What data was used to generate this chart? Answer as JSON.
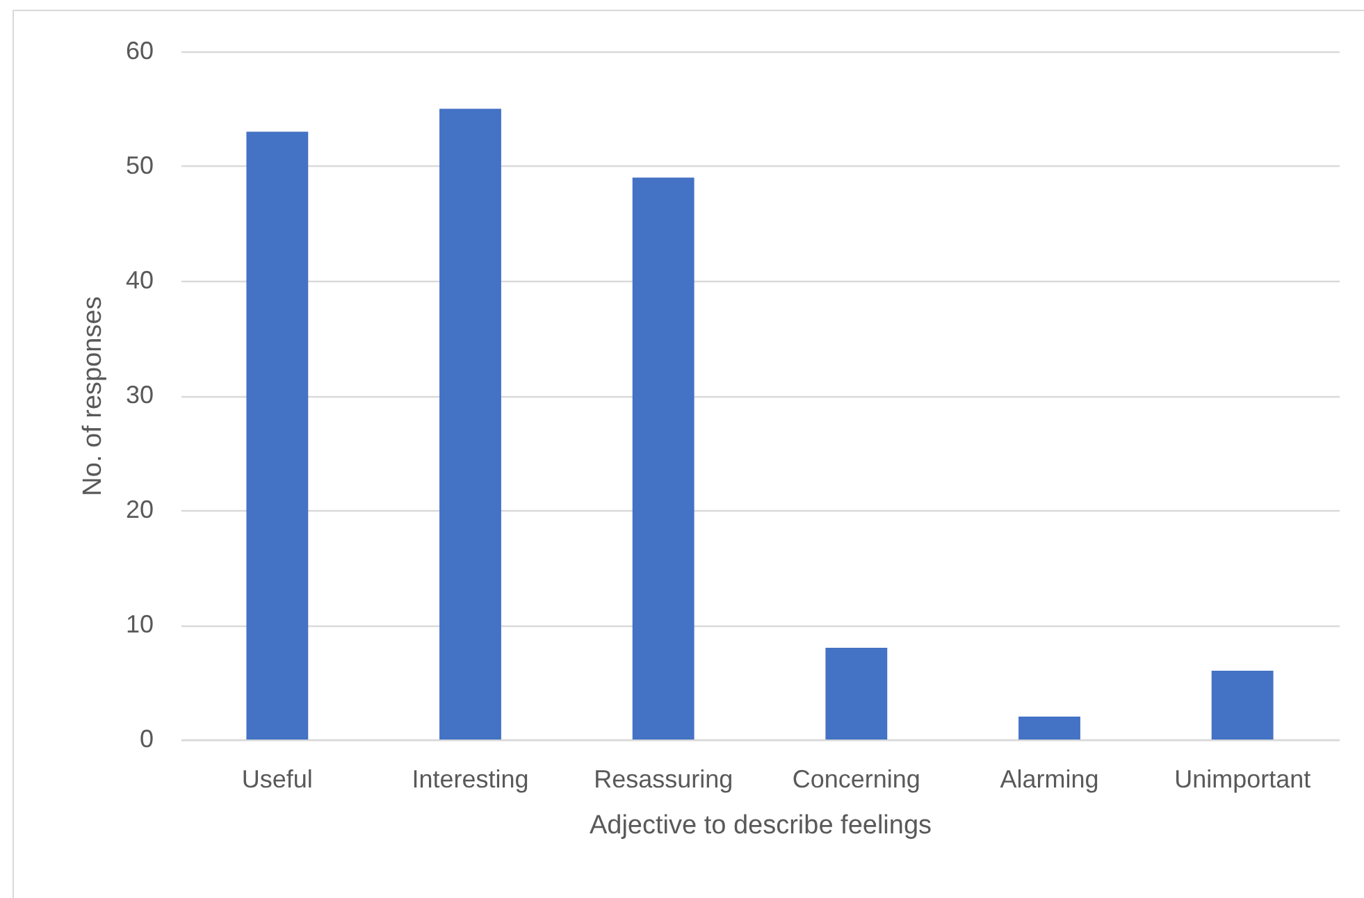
{
  "chart_data": {
    "type": "bar",
    "xlabel": "Adjective to describe feelings",
    "ylabel": "No. of responses",
    "categories": [
      "Useful",
      "Interesting",
      "Resassuring",
      "Concerning",
      "Alarming",
      "Unimportant"
    ],
    "values": [
      53,
      55,
      49,
      8,
      2,
      6
    ],
    "color": "#4472c4",
    "ylim": [
      0,
      60
    ],
    "yticks": [
      0,
      10,
      20,
      30,
      40,
      50,
      60
    ],
    "grid": "y"
  }
}
